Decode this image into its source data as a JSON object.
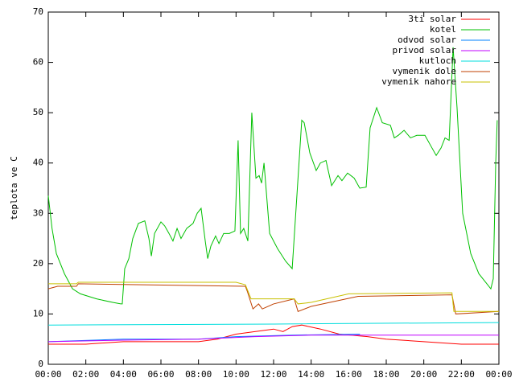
{
  "chart_data": {
    "type": "line",
    "y_label": "teplota ve C",
    "legend": "top-right",
    "xlim": [
      0,
      24
    ],
    "xticks": [
      {
        "value": 0,
        "label": "00:00"
      },
      {
        "value": 2,
        "label": "02:00"
      },
      {
        "value": 4,
        "label": "04:00"
      },
      {
        "value": 6,
        "label": "06:00"
      },
      {
        "value": 8,
        "label": "08:00"
      },
      {
        "value": 10,
        "label": "10:00"
      },
      {
        "value": 12,
        "label": "12:00"
      },
      {
        "value": 14,
        "label": "14:00"
      },
      {
        "value": 16,
        "label": "16:00"
      },
      {
        "value": 18,
        "label": "18:00"
      },
      {
        "value": 20,
        "label": "20:00"
      },
      {
        "value": 22,
        "label": "22:00"
      },
      {
        "value": 24,
        "label": "00:00"
      }
    ],
    "ylim": [
      0,
      70
    ],
    "yticks": [
      0,
      10,
      20,
      30,
      40,
      50,
      60,
      70
    ],
    "series": [
      {
        "name": "3ti solar",
        "color": "#ff0000",
        "x": [
          0,
          2,
          4,
          8,
          9,
          10,
          11,
          12,
          12.5,
          13,
          13.5,
          14.5,
          15.5,
          17,
          18,
          20,
          22,
          24
        ],
        "values": [
          4,
          4,
          4.5,
          4.5,
          5,
          6,
          6.5,
          7,
          6.5,
          7.5,
          7.8,
          7,
          6,
          5.5,
          5,
          4.5,
          4,
          4
        ]
      },
      {
        "name": "kotel",
        "color": "#00c000",
        "x": [
          0,
          0.2,
          0.43,
          0.86,
          1.29,
          1.71,
          2.57,
          3.43,
          3.86,
          3.94,
          4.07,
          4.29,
          4.5,
          4.8,
          5.14,
          5.36,
          5.49,
          5.66,
          6.0,
          6.2,
          6.43,
          6.64,
          6.86,
          7.07,
          7.37,
          7.71,
          7.93,
          8.14,
          8.36,
          8.49,
          8.66,
          8.91,
          9.09,
          9.34,
          9.64,
          9.94,
          10.11,
          10.24,
          10.41,
          10.63,
          10.84,
          11.06,
          11.23,
          11.36,
          11.49,
          11.79,
          12.21,
          12.64,
          12.99,
          13.5,
          13.63,
          13.93,
          14.27,
          14.49,
          14.79,
          15.09,
          15.43,
          15.64,
          15.94,
          16.29,
          16.59,
          16.93,
          17.14,
          17.49,
          17.79,
          18.22,
          18.43,
          18.64,
          18.95,
          19.29,
          19.63,
          20.06,
          20.36,
          20.66,
          20.92,
          21.13,
          21.35,
          21.56,
          21.77,
          22.07,
          22.5,
          22.93,
          23.36,
          23.57,
          23.7,
          23.83,
          23.91
        ],
        "values": [
          33.5,
          27,
          22,
          18,
          15,
          14,
          13,
          12.3,
          12,
          12,
          19,
          21,
          25,
          28,
          28.5,
          25,
          21.5,
          26,
          28.3,
          27.5,
          26,
          24.5,
          27,
          25,
          27,
          28,
          30,
          31,
          24.5,
          21,
          23.5,
          25.5,
          24,
          26,
          26,
          26.5,
          44.5,
          26,
          27,
          24.5,
          50,
          37,
          37.5,
          36,
          40,
          26,
          23,
          20.5,
          19,
          48.5,
          48,
          42,
          38.5,
          40,
          40.5,
          35.5,
          37.5,
          36.5,
          38,
          37,
          35,
          35.2,
          47,
          51,
          48,
          47.5,
          45,
          45.5,
          46.5,
          45,
          45.5,
          45.5,
          43.5,
          41.5,
          43,
          45,
          44.5,
          63,
          51,
          30,
          22,
          18,
          16,
          15,
          17,
          40,
          48.5
        ]
      },
      {
        "name": "odvod solar",
        "color": "#0080ff",
        "x": [
          0,
          4,
          8,
          10,
          13,
          16.6
        ],
        "values": [
          4.5,
          5,
          5,
          5.5,
          5.8,
          6
        ]
      },
      {
        "name": "privod solar",
        "color": "#c000ff",
        "x": [
          0,
          4,
          8,
          11,
          14,
          24
        ],
        "values": [
          4.5,
          4.8,
          5,
          5.5,
          5.8,
          5.8
        ]
      },
      {
        "name": "kutloch",
        "color": "#00dddd",
        "x": [
          0,
          12,
          24
        ],
        "values": [
          7.8,
          8,
          8.3
        ]
      },
      {
        "name": "vymenik dole",
        "color": "#c04000",
        "x": [
          0,
          0.5,
          1.5,
          1.6,
          10.5,
          10.6,
          10.9,
          11.2,
          11.4,
          12,
          13.1,
          13.3,
          14,
          16.5,
          21.5,
          21.7,
          24
        ],
        "values": [
          15,
          15.5,
          15.5,
          16,
          15.5,
          14.5,
          11,
          12,
          11,
          12,
          13,
          10.5,
          11.5,
          13.5,
          13.8,
          10,
          10.5
        ]
      },
      {
        "name": "vymenik nahore",
        "color": "#c8c000",
        "x": [
          0,
          1.5,
          1.6,
          10,
          10.5,
          10.8,
          13.1,
          13.3,
          14,
          16,
          21.5,
          21.6,
          24
        ],
        "values": [
          16,
          16,
          16.3,
          16.3,
          15.8,
          13,
          13,
          12,
          12.3,
          14,
          14.2,
          10.5,
          10.5
        ]
      }
    ]
  }
}
